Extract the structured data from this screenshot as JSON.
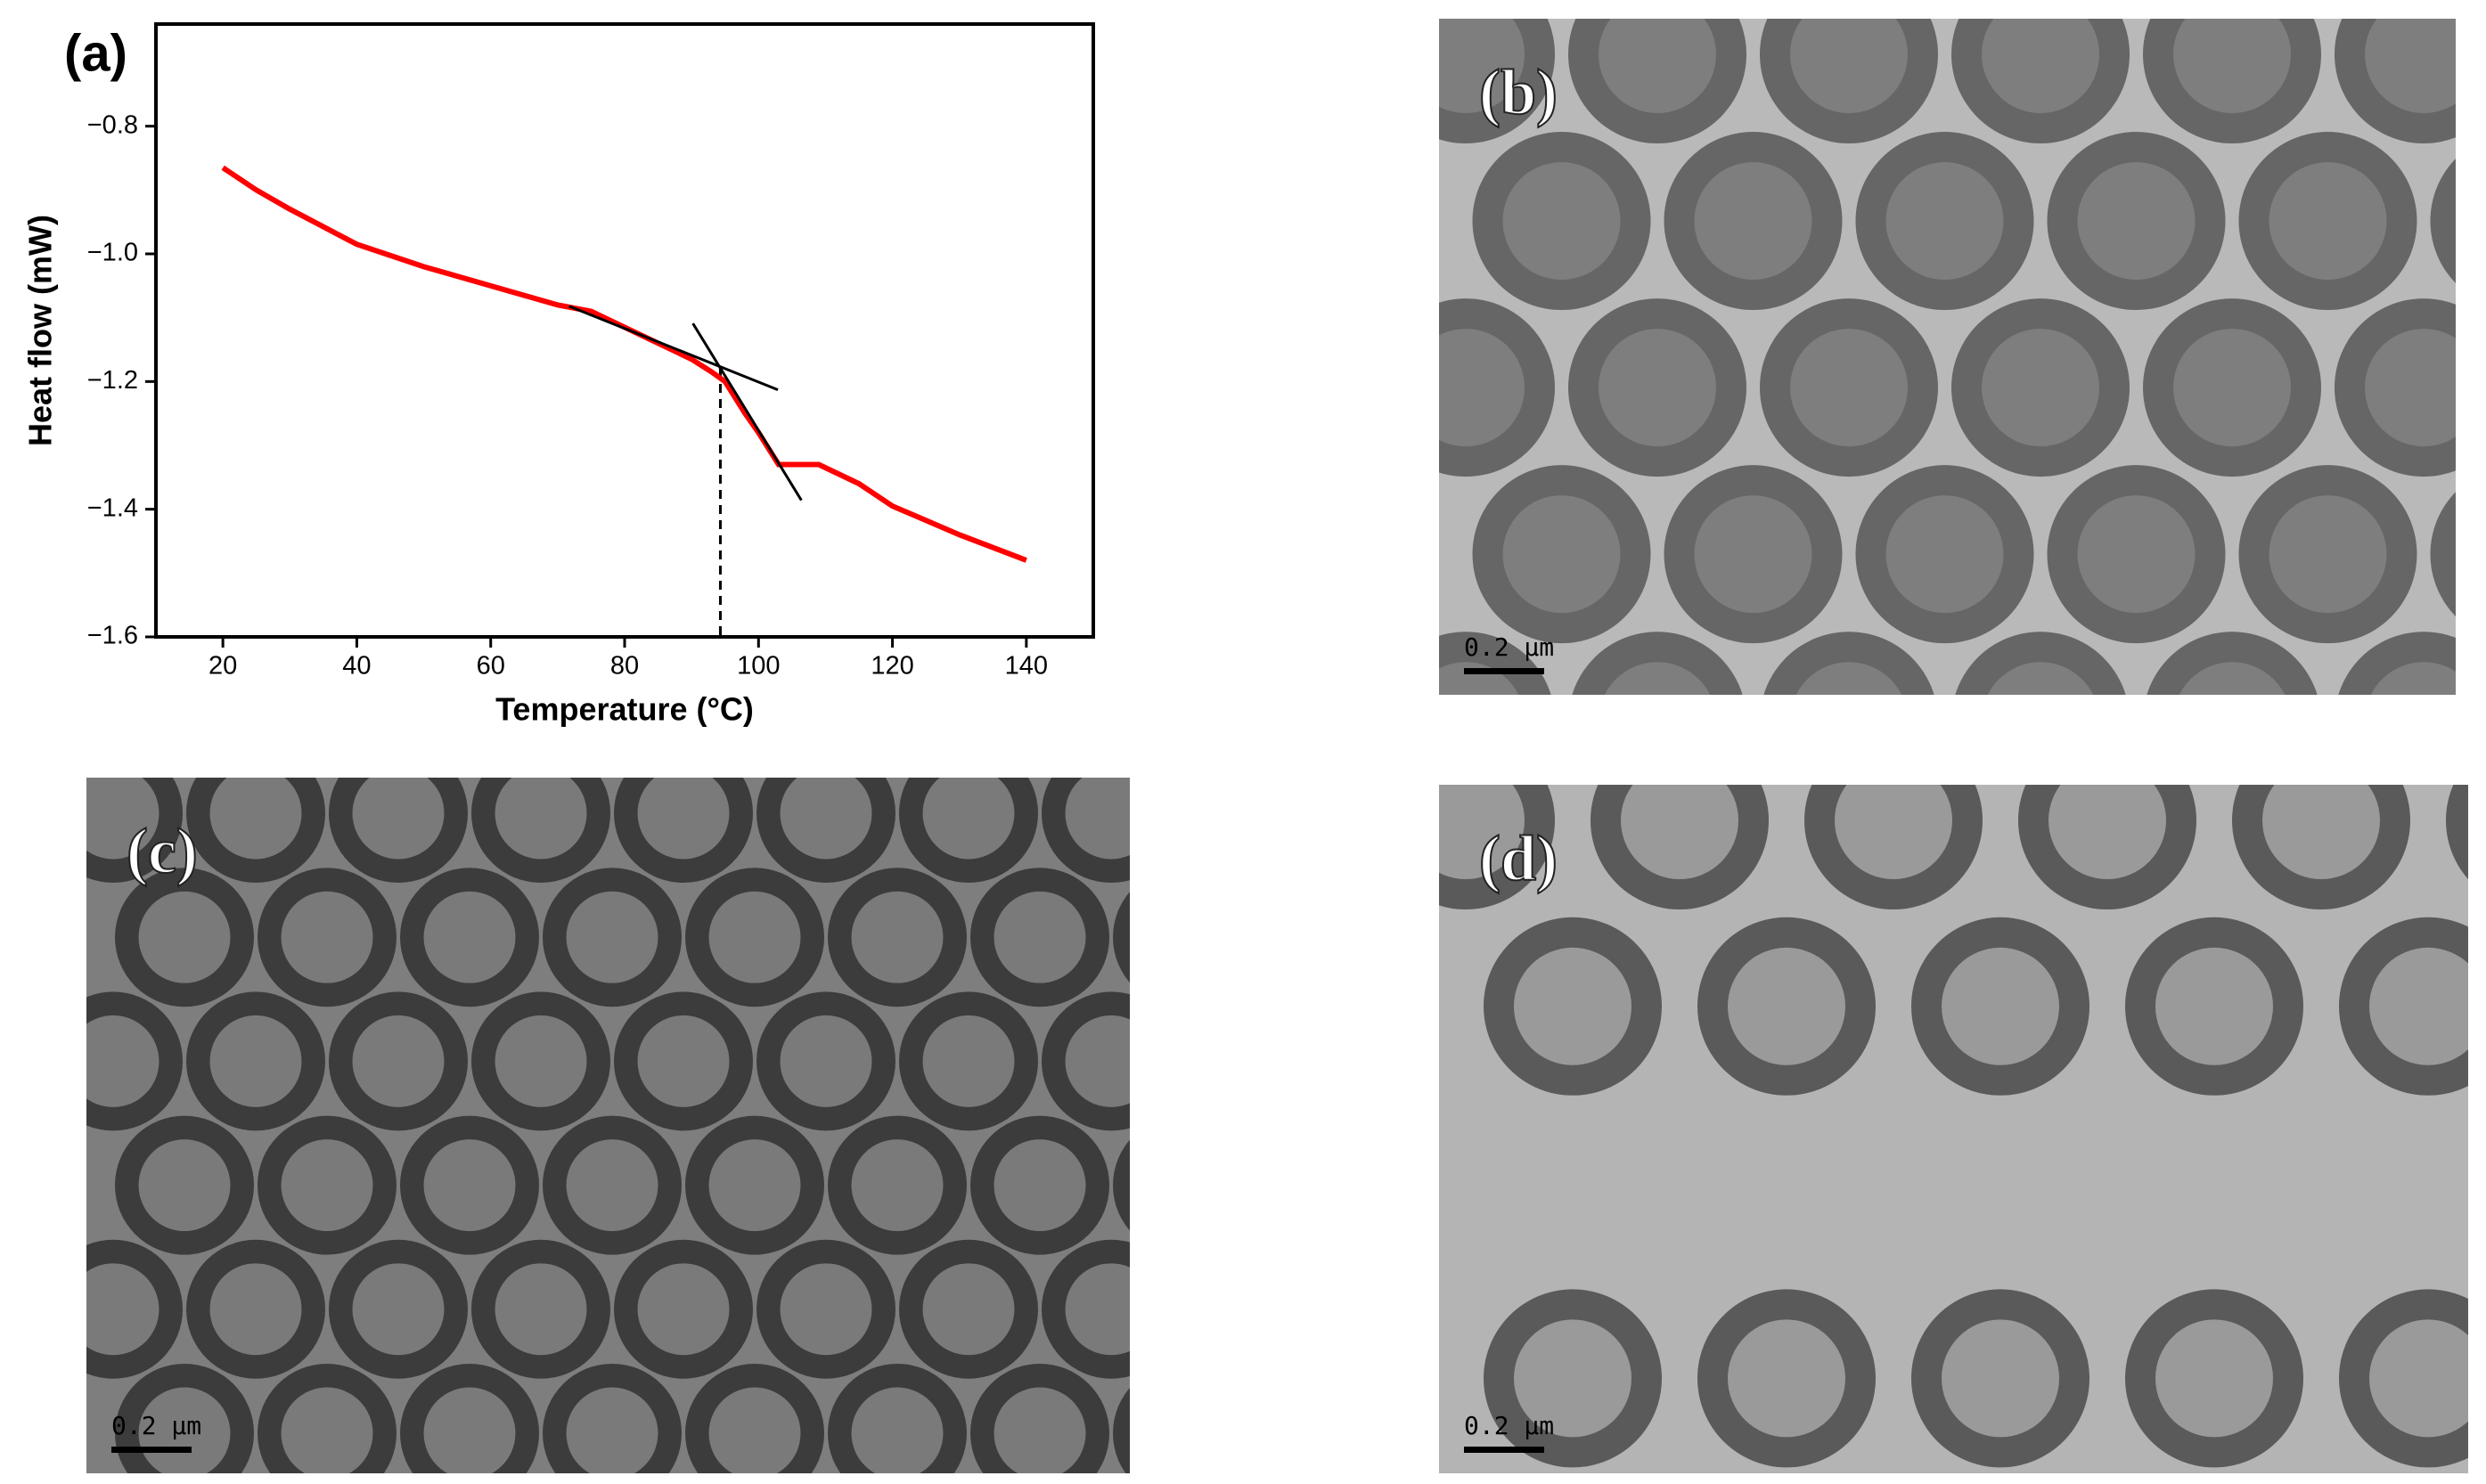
{
  "chart_data": {
    "type": "line",
    "panel_label": "(a)",
    "xlabel": "Temperature (°C)",
    "ylabel": "Heat flow (mW)",
    "x": [
      20,
      25,
      30,
      40,
      50,
      60,
      70,
      75,
      80,
      85,
      90,
      93,
      95,
      98,
      100,
      103,
      106,
      109,
      115,
      120,
      130,
      140
    ],
    "values": [
      -0.865,
      -0.9,
      -0.93,
      -0.985,
      -1.02,
      -1.05,
      -1.08,
      -1.09,
      -1.115,
      -1.14,
      -1.165,
      -1.185,
      -1.2,
      -1.25,
      -1.28,
      -1.33,
      -1.33,
      -1.33,
      -1.36,
      -1.395,
      -1.44,
      -1.48
    ],
    "color": "#ff0000",
    "tangent_lines": [
      {
        "x": [
          71.7,
          102.9
        ],
        "y": [
          -1.082,
          -1.213
        ]
      },
      {
        "x": [
          90.2,
          106.4
        ],
        "y": [
          -1.109,
          -1.386
        ]
      }
    ],
    "tangent_color": "#000000",
    "onset_x": 94.3,
    "onset_y": -1.18,
    "xlim": [
      10,
      150
    ],
    "xticks": [
      20,
      40,
      60,
      80,
      100,
      120,
      140
    ],
    "ylim": [
      -1.6,
      -0.64
    ],
    "yticks": [
      {
        "value": -1.6,
        "label": "−1.6"
      },
      {
        "value": -1.4,
        "label": "−1.4"
      },
      {
        "value": -1.2,
        "label": "−1.2"
      },
      {
        "value": -1.0,
        "label": "−1.0"
      },
      {
        "value": -0.8,
        "label": "−0.8"
      }
    ]
  },
  "panels": [
    {
      "label": "(b)",
      "scale_bar": "0.2 µm"
    },
    {
      "label": "(c)",
      "scale_bar": "0.2 µm"
    },
    {
      "label": "(d)",
      "scale_bar": "0.2 µm"
    }
  ]
}
